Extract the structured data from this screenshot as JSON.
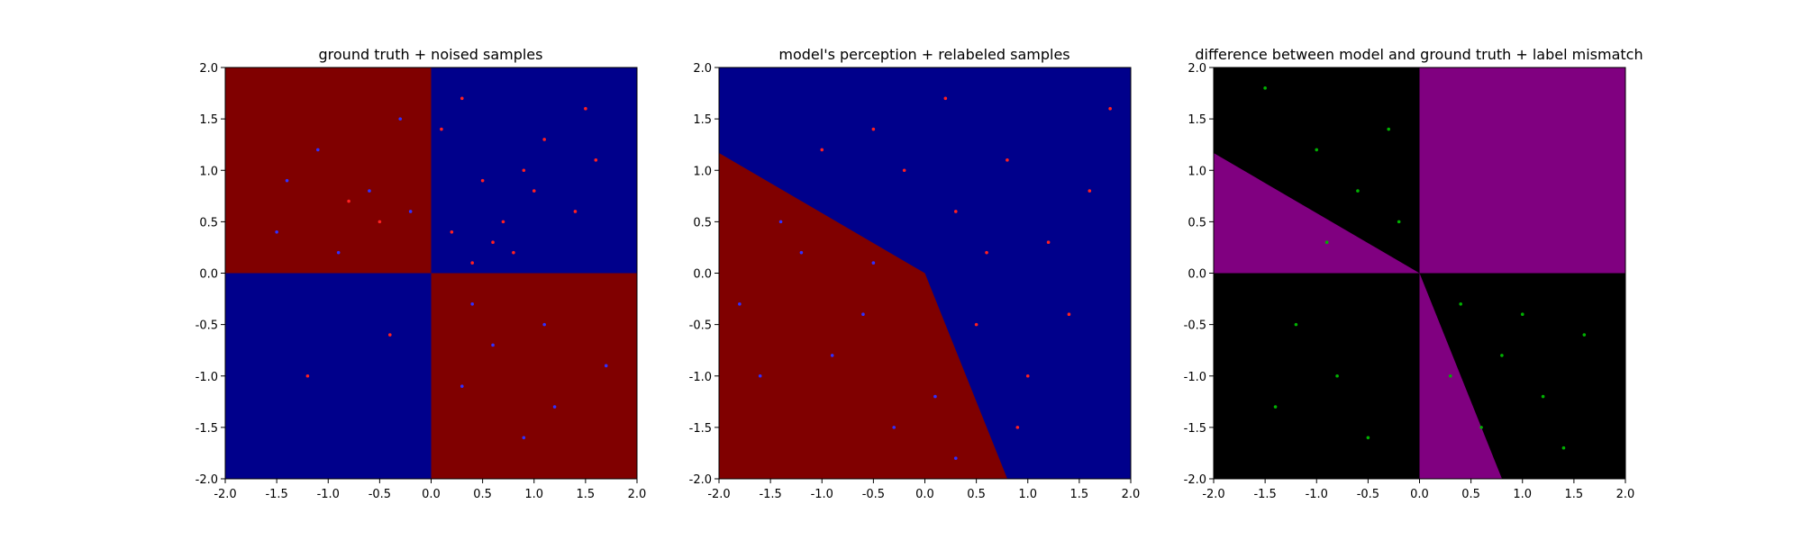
{
  "chart_data": [
    {
      "type": "scatter",
      "title": "ground truth + noised samples",
      "xlim": [
        -2.0,
        2.0
      ],
      "ylim": [
        -2.0,
        2.0
      ],
      "xticks": [
        "-2.0",
        "-1.5",
        "-1.0",
        "-0.5",
        "0.0",
        "0.5",
        "1.0",
        "1.5",
        "2.0"
      ],
      "yticks": [
        "-2.0",
        "-1.5",
        "-1.0",
        "-0.5",
        "0.0",
        "0.5",
        "1.0",
        "1.5",
        "2.0"
      ],
      "background": "XOR quadrant regions: red where x<0,y>0 and x>0,y<0; blue where x>0,y>0 and x<0,y<0",
      "region_colors": {
        "red": "#800000",
        "blue": "#00008b"
      },
      "series": [
        {
          "name": "",
          "color": "#ff2020",
          "x": [
            0.2,
            0.5,
            0.8,
            1.1,
            1.4,
            0.3,
            0.7,
            1.6,
            -0.4,
            -1.2,
            0.6,
            1.0,
            0.4,
            1.5,
            0.9,
            -0.8,
            -0.5,
            0.1
          ],
          "y": [
            0.4,
            0.9,
            0.2,
            1.3,
            0.6,
            1.7,
            0.5,
            1.1,
            -0.6,
            -1.0,
            0.3,
            0.8,
            0.1,
            1.6,
            1.0,
            0.7,
            0.5,
            1.4
          ]
        },
        {
          "name": "",
          "color": "#3030ff",
          "x": [
            -0.6,
            -1.1,
            -1.5,
            -0.3,
            -0.9,
            0.6,
            1.2,
            0.4,
            1.7,
            0.9,
            -1.4,
            -0.2,
            1.1,
            0.3
          ],
          "y": [
            0.8,
            1.2,
            0.4,
            1.5,
            0.2,
            -0.7,
            -1.3,
            -0.3,
            -0.9,
            -1.6,
            0.9,
            0.6,
            -0.5,
            -1.1
          ]
        }
      ]
    },
    {
      "type": "scatter",
      "title": "model's perception + relabeled samples",
      "xlim": [
        -2.0,
        2.0
      ],
      "ylim": [
        -2.0,
        2.0
      ],
      "xticks": [
        "-2.0",
        "-1.5",
        "-1.0",
        "-0.5",
        "0.0",
        "0.5",
        "1.0",
        "1.5",
        "2.0"
      ],
      "yticks": [
        "-2.0",
        "-1.5",
        "-1.0",
        "-0.5",
        "0.0",
        "0.5",
        "1.0",
        "1.5",
        "2.0"
      ],
      "background": "red region below boundary from (-2.0, 1.17) through (0.0, 0.0) to (0.8, -2.0); blue elsewhere",
      "boundary": [
        [
          -2.0,
          1.17
        ],
        [
          0.0,
          0.0
        ],
        [
          0.8,
          -2.0
        ]
      ],
      "region_colors": {
        "red": "#800000",
        "blue": "#00008b"
      },
      "series": [
        {
          "name": "",
          "color": "#ff2020",
          "x": [
            0.3,
            0.8,
            1.2,
            -0.5,
            0.5,
            1.6,
            0.2,
            -1.0,
            1.0,
            1.4,
            0.6,
            -0.2,
            0.9,
            1.8
          ],
          "y": [
            0.6,
            1.1,
            0.3,
            1.4,
            -0.5,
            0.8,
            1.7,
            1.2,
            -1.0,
            -0.4,
            0.2,
            1.0,
            -1.5,
            1.6
          ]
        },
        {
          "name": "",
          "color": "#3030ff",
          "x": [
            -0.6,
            -1.2,
            -1.6,
            -0.3,
            -0.9,
            0.1,
            -1.4,
            -0.5,
            0.3,
            -1.8
          ],
          "y": [
            -0.4,
            0.2,
            -1.0,
            -1.5,
            -0.8,
            -1.2,
            0.5,
            0.1,
            -1.8,
            -0.3
          ]
        }
      ]
    },
    {
      "type": "scatter",
      "title": "difference between model and ground truth + label mismatch",
      "xlim": [
        -2.0,
        2.0
      ],
      "ylim": [
        -2.0,
        2.0
      ],
      "xticks": [
        "-2.0",
        "-1.5",
        "-1.0",
        "-0.5",
        "0.0",
        "0.5",
        "1.0",
        "1.5",
        "2.0"
      ],
      "yticks": [
        "-2.0",
        "-1.5",
        "-1.0",
        "-0.5",
        "0.0",
        "0.5",
        "1.0",
        "1.5",
        "2.0"
      ],
      "background": "purple where model differs from ground truth (x>0,y>0 quadrant, wedge left of boundary above y=0, wedge right of x=0 below boundary); black elsewhere",
      "boundary": [
        [
          -2.0,
          1.17
        ],
        [
          0.0,
          0.0
        ],
        [
          0.8,
          -2.0
        ]
      ],
      "region_colors": {
        "match": "#000000",
        "mismatch": "#800080"
      },
      "series": [
        {
          "name": "",
          "color": "#00b000",
          "x": [
            -1.5,
            -1.0,
            -0.6,
            -0.3,
            -1.2,
            -0.8,
            0.4,
            0.8,
            1.2,
            1.6,
            0.6,
            -0.5,
            -1.4,
            -0.2,
            1.0,
            -0.9,
            0.3,
            1.4
          ],
          "y": [
            1.8,
            1.2,
            0.8,
            1.4,
            -0.5,
            -1.0,
            -0.3,
            -0.8,
            -1.2,
            -0.6,
            -1.5,
            -1.6,
            -1.3,
            0.5,
            -0.4,
            0.3,
            -1.0,
            -1.7
          ]
        }
      ]
    }
  ]
}
